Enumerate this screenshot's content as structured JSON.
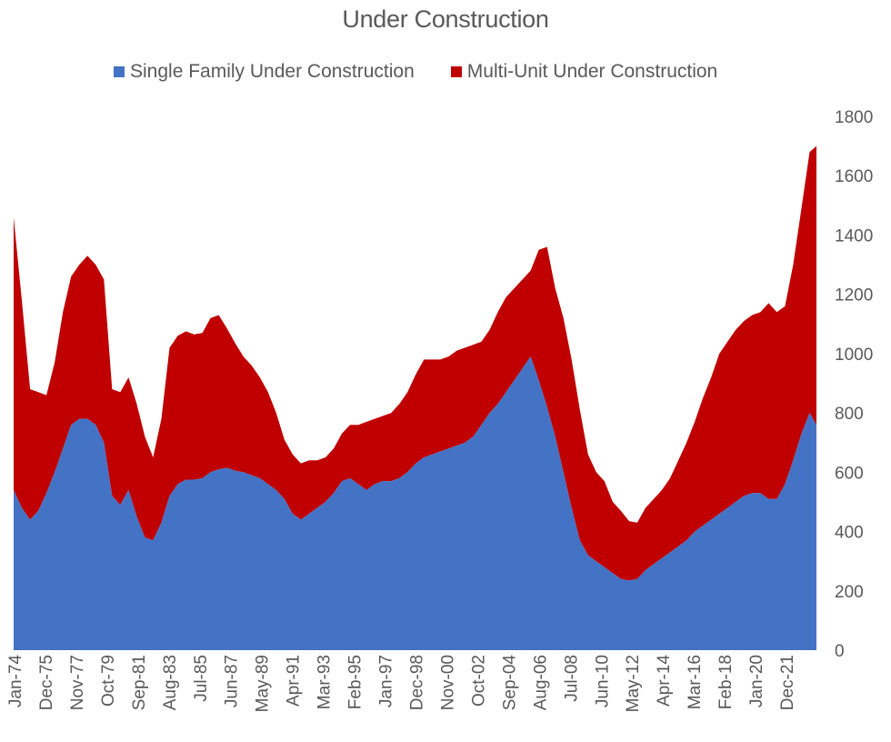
{
  "chart_data": {
    "type": "area",
    "title": "Under Construction",
    "xlabel": "",
    "ylabel": "",
    "ylim": [
      0,
      1800
    ],
    "yticks": [
      0,
      200,
      400,
      600,
      800,
      1000,
      1200,
      1400,
      1600,
      1800
    ],
    "xticks": [
      "Jan-74",
      "Dec-75",
      "Nov-77",
      "Oct-79",
      "Sep-81",
      "Aug-83",
      "Jul-85",
      "Jun-87",
      "May-89",
      "Apr-91",
      "Mar-93",
      "Feb-95",
      "Jan-97",
      "Dec-98",
      "Nov-00",
      "Oct-02",
      "Sep-04",
      "Aug-06",
      "Jul-08",
      "Jun-10",
      "May-12",
      "Apr-14",
      "Mar-16",
      "Feb-18",
      "Jan-20",
      "Dec-21"
    ],
    "grid": false,
    "legend_position": "top",
    "stacked": true,
    "colors": {
      "single": "#4472C4",
      "multi": "#C00000",
      "text": "#595959"
    },
    "x": [
      "1974-01",
      "1974-07",
      "1975-01",
      "1975-07",
      "1976-01",
      "1976-07",
      "1977-01",
      "1977-07",
      "1978-01",
      "1978-07",
      "1979-01",
      "1979-07",
      "1980-01",
      "1980-07",
      "1981-01",
      "1981-07",
      "1982-01",
      "1982-07",
      "1983-01",
      "1983-07",
      "1984-01",
      "1984-07",
      "1985-01",
      "1985-07",
      "1986-01",
      "1986-07",
      "1987-01",
      "1987-07",
      "1988-01",
      "1988-07",
      "1989-01",
      "1989-07",
      "1990-01",
      "1990-07",
      "1991-01",
      "1991-07",
      "1992-01",
      "1992-07",
      "1993-01",
      "1993-07",
      "1994-01",
      "1994-07",
      "1995-01",
      "1995-07",
      "1996-01",
      "1996-07",
      "1997-01",
      "1997-07",
      "1998-01",
      "1998-07",
      "1999-01",
      "1999-07",
      "2000-01",
      "2000-07",
      "2001-01",
      "2001-07",
      "2002-01",
      "2002-07",
      "2003-01",
      "2003-07",
      "2004-01",
      "2004-07",
      "2005-01",
      "2005-07",
      "2006-01",
      "2006-07",
      "2007-01",
      "2007-07",
      "2008-01",
      "2008-07",
      "2009-01",
      "2009-07",
      "2010-01",
      "2010-07",
      "2011-01",
      "2011-07",
      "2012-01",
      "2012-07",
      "2013-01",
      "2013-07",
      "2014-01",
      "2014-07",
      "2015-01",
      "2015-07",
      "2016-01",
      "2016-07",
      "2017-01",
      "2017-07",
      "2018-01",
      "2018-07",
      "2019-01",
      "2019-07",
      "2020-01",
      "2020-07",
      "2021-01",
      "2021-07",
      "2022-01",
      "2022-07",
      "2022-12"
    ],
    "series": [
      {
        "name": "Single Family Under Construction",
        "values": [
          540,
          480,
          440,
          470,
          530,
          600,
          680,
          760,
          780,
          780,
          760,
          700,
          520,
          490,
          540,
          450,
          380,
          370,
          430,
          520,
          560,
          575,
          575,
          580,
          600,
          610,
          615,
          605,
          600,
          590,
          580,
          560,
          540,
          510,
          460,
          440,
          460,
          480,
          500,
          530,
          570,
          580,
          560,
          540,
          560,
          570,
          570,
          580,
          600,
          630,
          650,
          660,
          670,
          680,
          690,
          700,
          720,
          760,
          800,
          830,
          870,
          910,
          950,
          990,
          910,
          820,
          720,
          600,
          480,
          370,
          320,
          300,
          280,
          260,
          240,
          235,
          240,
          270,
          290,
          310,
          330,
          350,
          370,
          400,
          420,
          440,
          460,
          480,
          500,
          520,
          530,
          530,
          510,
          510,
          560,
          640,
          730,
          800,
          760
        ]
      },
      {
        "name": "Multi-Unit Under Construction",
        "values": [
          920,
          700,
          440,
          400,
          330,
          370,
          460,
          500,
          520,
          550,
          540,
          550,
          360,
          380,
          380,
          380,
          340,
          280,
          350,
          500,
          500,
          500,
          490,
          490,
          520,
          520,
          470,
          430,
          390,
          370,
          340,
          310,
          260,
          200,
          200,
          190,
          180,
          160,
          150,
          150,
          160,
          180,
          200,
          230,
          220,
          220,
          230,
          250,
          270,
          300,
          330,
          320,
          310,
          310,
          320,
          320,
          310,
          280,
          280,
          310,
          320,
          310,
          300,
          290,
          440,
          540,
          500,
          520,
          500,
          440,
          340,
          300,
          290,
          240,
          230,
          200,
          190,
          210,
          220,
          230,
          250,
          290,
          330,
          370,
          430,
          480,
          540,
          560,
          580,
          590,
          600,
          610,
          660,
          630,
          600,
          660,
          760,
          880,
          940
        ]
      }
    ]
  }
}
